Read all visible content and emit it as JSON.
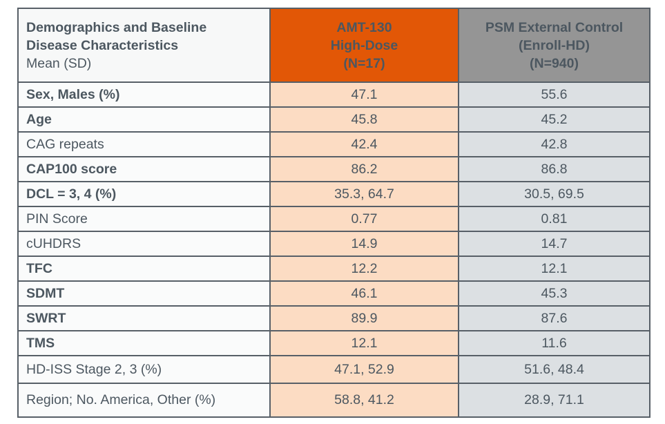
{
  "table": {
    "header": {
      "label_col": {
        "title_line1": "Demographics and Baseline",
        "title_line2": "Disease Characteristics",
        "subtitle": "Mean (SD)"
      },
      "amt_col": {
        "line1": "AMT-130",
        "line2": "High-Dose",
        "line3": "(N=17)"
      },
      "psm_col": {
        "line1": "PSM External Control",
        "line2": "(Enroll-HD)",
        "line3": "(N=940)"
      }
    },
    "rows": [
      {
        "label": "Sex, Males (%)",
        "bold": true,
        "amt130": "47.1",
        "psm": "55.6"
      },
      {
        "label": "Age",
        "bold": true,
        "amt130": "45.8",
        "psm": "45.2"
      },
      {
        "label": "CAG repeats",
        "bold": false,
        "amt130": "42.4",
        "psm": "42.8"
      },
      {
        "label": "CAP100 score",
        "bold": true,
        "amt130": "86.2",
        "psm": "86.8"
      },
      {
        "label": "DCL = 3, 4 (%)",
        "bold": true,
        "amt130": "35.3, 64.7",
        "psm": "30.5, 69.5"
      },
      {
        "label": "PIN Score",
        "bold": false,
        "amt130": "0.77",
        "psm": "0.81"
      },
      {
        "label": "cUHDRS",
        "bold": false,
        "amt130": "14.9",
        "psm": "14.7"
      },
      {
        "label": "TFC",
        "bold": true,
        "amt130": "12.2",
        "psm": "12.1"
      },
      {
        "label": "SDMT",
        "bold": true,
        "amt130": "46.1",
        "psm": "45.3"
      },
      {
        "label": "SWRT",
        "bold": true,
        "amt130": "89.9",
        "psm": "87.6"
      },
      {
        "label": "TMS",
        "bold": true,
        "amt130": "12.1",
        "psm": "11.6"
      },
      {
        "label": "HD-ISS Stage 2, 3 (%)",
        "bold": false,
        "amt130": "47.1, 52.9",
        "psm": "51.6, 48.4"
      },
      {
        "label": "Region; No. America, Other (%)",
        "bold": false,
        "amt130": "58.8, 41.2",
        "psm": "28.9, 71.1"
      }
    ],
    "colors": {
      "accent_orange": "#E25706",
      "header_gray": "#959595",
      "amt_cell_bg": "#FCDCC3",
      "psm_cell_bg": "#DCE0E3",
      "border": "#575F67",
      "text": "#4C5760"
    }
  }
}
